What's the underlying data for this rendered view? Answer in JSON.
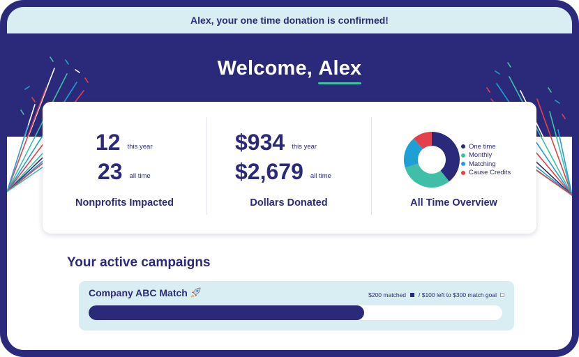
{
  "banner": {
    "text": "Alex, your one time donation is confirmed!"
  },
  "welcome": {
    "prefix": "Welcome,",
    "name": "Alex"
  },
  "stats": {
    "nonprofits": {
      "this_year_value": "12",
      "this_year_label": "this year",
      "all_time_value": "23",
      "all_time_label": "all time",
      "title": "Nonprofits Impacted"
    },
    "dollars": {
      "this_year_value": "$934",
      "this_year_label": "this year",
      "all_time_value": "$2,679",
      "all_time_label": "all time",
      "title": "Dollars Donated"
    },
    "overview": {
      "title": "All Time Overview",
      "legend": [
        {
          "label": "One time",
          "color": "#2b2a7a"
        },
        {
          "label": "Monthly",
          "color": "#3fbfa8"
        },
        {
          "label": "Matching",
          "color": "#1e9fd6"
        },
        {
          "label": "Cause Credits",
          "color": "#e2404a"
        }
      ]
    }
  },
  "campaigns": {
    "section_title": "Your active campaigns",
    "items": [
      {
        "name": "Company ABC Match",
        "icon": "rocket-icon",
        "matched_text": "$200 matched",
        "left_text": "/ $100 left to $300 match goal",
        "progress_fraction": 0.6667
      }
    ]
  },
  "colors": {
    "brand_navy": "#2b2a7a",
    "accent_teal": "#3fbfa8",
    "light_blue": "#d9eef2"
  }
}
